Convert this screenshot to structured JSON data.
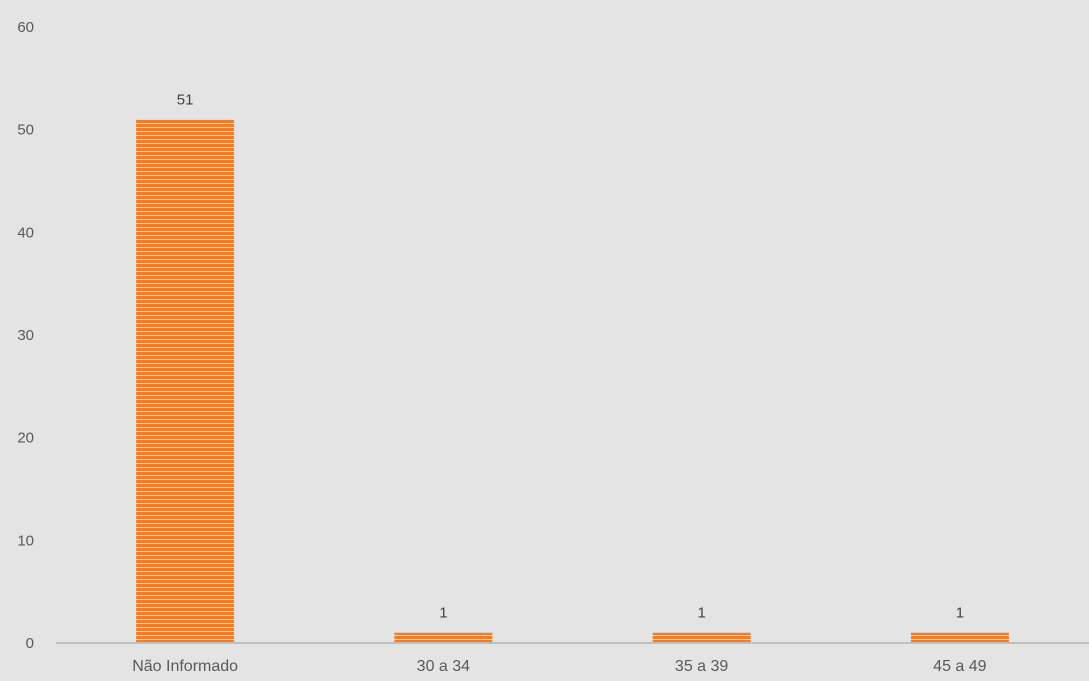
{
  "chart_data": {
    "type": "bar",
    "categories": [
      "Não Informado",
      "30 a 34",
      "35 a 39",
      "45 a 49"
    ],
    "values": [
      51,
      1,
      1,
      1
    ],
    "data_labels": [
      "51",
      "1",
      "1",
      "1"
    ],
    "title": "",
    "xlabel": "",
    "ylabel": "",
    "ylim": [
      0,
      60
    ],
    "yticks": [
      0,
      10,
      20,
      30,
      40,
      50,
      60
    ],
    "grid": false,
    "legend": "none"
  },
  "colors": {
    "background": "#e4e4e4",
    "bar": "#f07c2c",
    "bar_stripe": "#fbd3b6",
    "axis": "#bfbfbf",
    "text": "#595959"
  }
}
